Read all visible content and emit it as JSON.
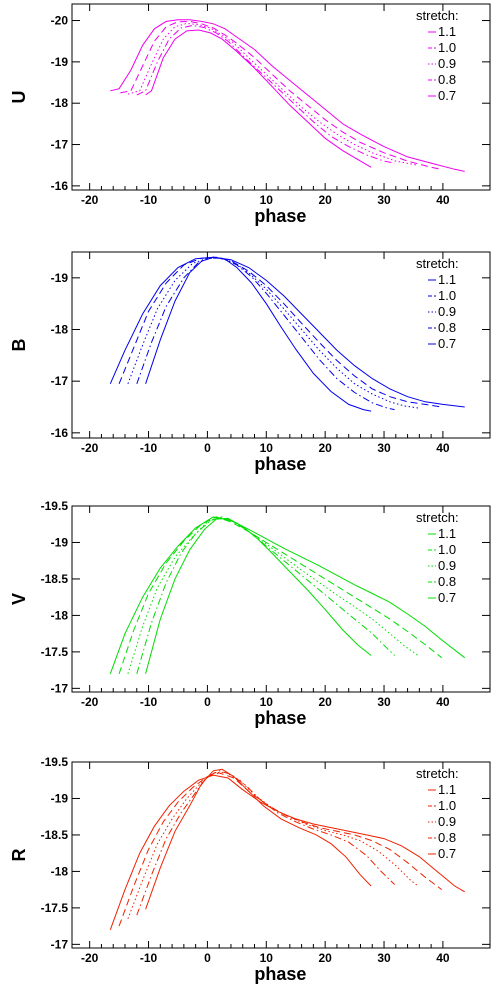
{
  "chart_data": [
    {
      "type": "line",
      "ylabel": "U",
      "xlabel": "phase",
      "xlim": [
        -23,
        48
      ],
      "ylim": [
        -15.9,
        -20.4
      ],
      "y_inverted": true,
      "x_ticks": [
        "-20",
        "-10",
        "0",
        "10",
        "20",
        "30",
        "40"
      ],
      "y_ticks": [
        "-20",
        "-19",
        "-18",
        "-17",
        "-16"
      ],
      "color": "#ee00ee",
      "legend_title": "stretch:",
      "series": [
        {
          "name": "1.1",
          "dash": "solid",
          "x": [
            -16.5,
            -15,
            -13,
            -11,
            -9,
            -7,
            -5,
            -3,
            -1,
            1,
            3,
            5,
            8,
            11,
            14,
            17,
            20,
            23,
            26,
            30,
            34,
            38,
            42,
            43.7
          ],
          "y": [
            -18.3,
            -18.35,
            -18.8,
            -19.4,
            -19.8,
            -19.98,
            -20.02,
            -20.02,
            -19.98,
            -19.92,
            -19.8,
            -19.6,
            -19.3,
            -18.9,
            -18.55,
            -18.2,
            -17.85,
            -17.5,
            -17.25,
            -16.95,
            -16.7,
            -16.55,
            -16.4,
            -16.35
          ]
        },
        {
          "name": "1.0",
          "dash": "dash",
          "x": [
            -14.8,
            -13,
            -11,
            -9,
            -7,
            -5,
            -3,
            -1,
            1,
            3,
            5,
            8,
            11,
            14,
            17,
            20,
            23,
            26,
            30,
            34,
            38,
            39.7
          ],
          "y": [
            -18.25,
            -18.3,
            -18.9,
            -19.5,
            -19.85,
            -19.97,
            -19.98,
            -19.92,
            -19.82,
            -19.65,
            -19.45,
            -19.1,
            -18.7,
            -18.3,
            -17.95,
            -17.6,
            -17.3,
            -17.05,
            -16.8,
            -16.6,
            -16.45,
            -16.4
          ]
        },
        {
          "name": "0.9",
          "dash": "dot",
          "x": [
            -13.5,
            -11.5,
            -9.5,
            -7.5,
            -5.5,
            -3.5,
            -1.5,
            0.5,
            2.5,
            4.5,
            7,
            10,
            13,
            16,
            19,
            22,
            25,
            28,
            32,
            35.7
          ],
          "y": [
            -18.22,
            -18.3,
            -18.95,
            -19.55,
            -19.85,
            -19.93,
            -19.9,
            -19.82,
            -19.65,
            -19.45,
            -19.1,
            -18.7,
            -18.3,
            -17.9,
            -17.55,
            -17.25,
            -17.0,
            -16.8,
            -16.6,
            -16.5
          ]
        },
        {
          "name": "0.8",
          "dash": "dashdot",
          "x": [
            -12,
            -10.5,
            -8.5,
            -6.5,
            -4.5,
            -2.5,
            -0.5,
            1.5,
            3.5,
            6,
            9,
            12,
            15,
            18,
            21,
            24,
            27,
            30,
            31.8
          ],
          "y": [
            -18.2,
            -18.3,
            -19.0,
            -19.55,
            -19.82,
            -19.88,
            -19.83,
            -19.7,
            -19.5,
            -19.15,
            -18.75,
            -18.35,
            -17.95,
            -17.55,
            -17.2,
            -16.95,
            -16.75,
            -16.6,
            -16.55
          ]
        },
        {
          "name": "0.7",
          "dash": "solid",
          "x": [
            -10.5,
            -9.5,
            -7.5,
            -5.5,
            -3.5,
            -1.5,
            0.5,
            2.5,
            5,
            8,
            11,
            14,
            17,
            20,
            23,
            26,
            27.8
          ],
          "y": [
            -18.2,
            -18.3,
            -19.1,
            -19.55,
            -19.75,
            -19.77,
            -19.7,
            -19.55,
            -19.25,
            -18.85,
            -18.4,
            -17.95,
            -17.55,
            -17.15,
            -16.85,
            -16.6,
            -16.45
          ]
        }
      ]
    },
    {
      "type": "line",
      "ylabel": "B",
      "xlabel": "phase",
      "xlim": [
        -23,
        48
      ],
      "ylim": [
        -15.9,
        -19.5
      ],
      "y_inverted": true,
      "x_ticks": [
        "-20",
        "-10",
        "0",
        "10",
        "20",
        "30",
        "40"
      ],
      "y_ticks": [
        "-19",
        "-18",
        "-17",
        "-16"
      ],
      "color": "#0000ee",
      "legend_title": "stretch:",
      "series": [
        {
          "name": "1.1",
          "dash": "solid",
          "x": [
            -16.5,
            -14,
            -11,
            -8,
            -5,
            -2,
            1,
            4,
            7,
            10,
            13,
            16,
            19,
            22,
            25,
            28,
            31,
            34,
            37,
            40,
            43.7
          ],
          "y": [
            -16.95,
            -17.6,
            -18.3,
            -18.85,
            -19.2,
            -19.37,
            -19.4,
            -19.35,
            -19.2,
            -18.95,
            -18.65,
            -18.3,
            -17.95,
            -17.6,
            -17.3,
            -17.05,
            -16.85,
            -16.7,
            -16.6,
            -16.55,
            -16.5
          ]
        },
        {
          "name": "1.0",
          "dash": "dash",
          "x": [
            -15,
            -12.5,
            -10,
            -7,
            -4,
            -1,
            1.5,
            4,
            7,
            10,
            13,
            16,
            19,
            22,
            25,
            28,
            31,
            34,
            37,
            39.8
          ],
          "y": [
            -16.95,
            -17.65,
            -18.35,
            -18.9,
            -19.25,
            -19.38,
            -19.4,
            -19.33,
            -19.13,
            -18.85,
            -18.5,
            -18.12,
            -17.75,
            -17.4,
            -17.1,
            -16.85,
            -16.7,
            -16.6,
            -16.55,
            -16.5
          ]
        },
        {
          "name": "0.9",
          "dash": "dot",
          "x": [
            -13.5,
            -11,
            -8.5,
            -5.5,
            -2.5,
            0,
            2,
            4.5,
            7,
            10,
            13,
            16,
            19,
            22,
            25,
            28,
            31,
            33.5,
            35.8
          ],
          "y": [
            -16.95,
            -17.7,
            -18.4,
            -18.95,
            -19.28,
            -19.38,
            -19.38,
            -19.3,
            -19.1,
            -18.78,
            -18.4,
            -18.0,
            -17.6,
            -17.25,
            -16.95,
            -16.75,
            -16.6,
            -16.52,
            -16.48
          ]
        },
        {
          "name": "0.8",
          "dash": "dashdot",
          "x": [
            -12,
            -9.5,
            -7,
            -4,
            -1.5,
            0.5,
            2.5,
            5,
            7.5,
            10,
            13,
            16,
            19,
            22,
            25,
            28,
            30.5,
            31.8
          ],
          "y": [
            -16.95,
            -17.75,
            -18.45,
            -19.0,
            -19.3,
            -19.38,
            -19.38,
            -19.25,
            -19.02,
            -18.7,
            -18.28,
            -17.85,
            -17.42,
            -17.05,
            -16.78,
            -16.58,
            -16.48,
            -16.45
          ]
        },
        {
          "name": "0.7",
          "dash": "solid",
          "x": [
            -10.5,
            -8,
            -5.5,
            -3,
            -1,
            1,
            3,
            5,
            7.5,
            10,
            12.5,
            15,
            18,
            21,
            24,
            26.5,
            27.8
          ],
          "y": [
            -16.95,
            -17.8,
            -18.55,
            -19.1,
            -19.32,
            -19.4,
            -19.36,
            -19.2,
            -18.9,
            -18.5,
            -18.05,
            -17.62,
            -17.15,
            -16.8,
            -16.55,
            -16.45,
            -16.42
          ]
        }
      ]
    },
    {
      "type": "line",
      "ylabel": "V",
      "xlabel": "phase",
      "xlim": [
        -23,
        48
      ],
      "ylim": [
        -16.95,
        -19.5
      ],
      "y_inverted": true,
      "x_ticks": [
        "-20",
        "-10",
        "0",
        "10",
        "20",
        "30",
        "40"
      ],
      "y_ticks": [
        "-19.5",
        "-19",
        "-18.5",
        "-18",
        "-17.5",
        "-17"
      ],
      "color": "#00dd00",
      "legend_title": "stretch:",
      "series": [
        {
          "name": "1.1",
          "dash": "solid",
          "x": [
            -16.5,
            -14,
            -11,
            -8,
            -5,
            -2,
            1,
            4,
            7,
            10,
            13,
            16,
            19,
            22,
            25,
            28,
            31,
            34,
            37,
            40,
            43.7
          ],
          "y": [
            -17.2,
            -17.75,
            -18.25,
            -18.65,
            -18.95,
            -19.2,
            -19.35,
            -19.3,
            -19.18,
            -19.05,
            -18.92,
            -18.8,
            -18.68,
            -18.55,
            -18.42,
            -18.3,
            -18.18,
            -18.02,
            -17.85,
            -17.65,
            -17.42
          ]
        },
        {
          "name": "1.0",
          "dash": "dash",
          "x": [
            -15,
            -12.5,
            -10,
            -7,
            -4,
            -1,
            1.5,
            4,
            7,
            10,
            13,
            16,
            19,
            22,
            25,
            28,
            31,
            34,
            37,
            39.8
          ],
          "y": [
            -17.2,
            -17.8,
            -18.3,
            -18.72,
            -19.02,
            -19.25,
            -19.35,
            -19.28,
            -19.15,
            -19.0,
            -18.85,
            -18.7,
            -18.55,
            -18.4,
            -18.25,
            -18.1,
            -17.95,
            -17.78,
            -17.6,
            -17.42
          ]
        },
        {
          "name": "0.9",
          "dash": "dot",
          "x": [
            -13.5,
            -11,
            -8.5,
            -5.5,
            -2.5,
            0,
            2,
            4.5,
            7,
            10,
            13,
            16,
            19,
            22,
            25,
            28,
            31,
            33.5,
            35.8
          ],
          "y": [
            -17.2,
            -17.85,
            -18.38,
            -18.8,
            -19.08,
            -19.28,
            -19.35,
            -19.28,
            -19.15,
            -18.98,
            -18.8,
            -18.62,
            -18.45,
            -18.28,
            -18.12,
            -17.95,
            -17.75,
            -17.58,
            -17.45
          ]
        },
        {
          "name": "0.8",
          "dash": "dashdot",
          "x": [
            -12,
            -9.5,
            -7,
            -4.5,
            -2,
            0.5,
            2.5,
            5,
            7.5,
            10,
            13,
            16,
            19,
            22,
            25,
            28,
            30.5,
            31.8
          ],
          "y": [
            -17.2,
            -17.9,
            -18.45,
            -18.85,
            -19.12,
            -19.3,
            -19.35,
            -19.26,
            -19.12,
            -18.95,
            -18.75,
            -18.55,
            -18.35,
            -18.15,
            -17.95,
            -17.75,
            -17.55,
            -17.45
          ]
        },
        {
          "name": "0.7",
          "dash": "solid",
          "x": [
            -10.5,
            -8,
            -5.5,
            -3,
            -0.5,
            1.5,
            3.5,
            6,
            8.5,
            11,
            14,
            17,
            20,
            23,
            25.5,
            27.8
          ],
          "y": [
            -17.2,
            -17.95,
            -18.5,
            -18.9,
            -19.18,
            -19.32,
            -19.33,
            -19.22,
            -19.05,
            -18.85,
            -18.6,
            -18.35,
            -18.08,
            -17.8,
            -17.6,
            -17.45
          ]
        }
      ]
    },
    {
      "type": "line",
      "ylabel": "R",
      "xlabel": "phase",
      "xlim": [
        -23,
        48
      ],
      "ylim": [
        -16.95,
        -19.5
      ],
      "y_inverted": true,
      "x_ticks": [
        "-20",
        "-10",
        "0",
        "10",
        "20",
        "30",
        "40"
      ],
      "y_ticks": [
        "-19.5",
        "-19",
        "-18.5",
        "-18",
        "-17.5",
        "-17"
      ],
      "color": "#ee2200",
      "legend_title": "stretch:",
      "series": [
        {
          "name": "1.1",
          "dash": "solid",
          "x": [
            -16.5,
            -14,
            -11.5,
            -9,
            -6.5,
            -4,
            -1.5,
            1,
            3.5,
            6,
            9,
            12,
            15,
            18,
            21,
            24,
            27,
            30,
            33,
            36,
            39,
            42,
            43.7
          ],
          "y": [
            -17.2,
            -17.75,
            -18.25,
            -18.62,
            -18.9,
            -19.1,
            -19.25,
            -19.32,
            -19.28,
            -19.12,
            -18.95,
            -18.82,
            -18.72,
            -18.65,
            -18.6,
            -18.55,
            -18.5,
            -18.45,
            -18.35,
            -18.2,
            -18.0,
            -17.8,
            -17.72
          ]
        },
        {
          "name": "1.0",
          "dash": "dash",
          "x": [
            -15,
            -12.5,
            -10,
            -7.5,
            -5,
            -2.5,
            0,
            2,
            4.5,
            7,
            10,
            13,
            16,
            19,
            22,
            25,
            28,
            31,
            34,
            37,
            39.8
          ],
          "y": [
            -17.25,
            -17.8,
            -18.3,
            -18.68,
            -18.95,
            -19.15,
            -19.3,
            -19.35,
            -19.28,
            -19.1,
            -18.92,
            -18.78,
            -18.68,
            -18.6,
            -18.55,
            -18.5,
            -18.42,
            -18.3,
            -18.12,
            -17.92,
            -17.75
          ]
        },
        {
          "name": "0.9",
          "dash": "dot",
          "x": [
            -13.5,
            -11,
            -8.5,
            -6,
            -3.5,
            -1,
            1,
            3,
            5.5,
            8,
            11,
            14,
            17,
            20,
            23,
            26,
            29,
            32,
            34.5,
            35.8
          ],
          "y": [
            -17.35,
            -17.88,
            -18.38,
            -18.72,
            -19.0,
            -19.22,
            -19.35,
            -19.36,
            -19.25,
            -19.05,
            -18.87,
            -18.74,
            -18.64,
            -18.56,
            -18.5,
            -18.42,
            -18.28,
            -18.08,
            -17.88,
            -17.8
          ]
        },
        {
          "name": "0.8",
          "dash": "dashdot",
          "x": [
            -12,
            -9.5,
            -7,
            -4.5,
            -2,
            0,
            2,
            4,
            6.5,
            9,
            12,
            15,
            18,
            21,
            24,
            27,
            29.5,
            31.8
          ],
          "y": [
            -17.4,
            -17.95,
            -18.45,
            -18.8,
            -19.08,
            -19.3,
            -19.38,
            -19.33,
            -19.18,
            -18.98,
            -18.8,
            -18.68,
            -18.58,
            -18.5,
            -18.4,
            -18.22,
            -18.0,
            -17.82
          ]
        },
        {
          "name": "0.7",
          "dash": "solid",
          "x": [
            -10.5,
            -8,
            -5.5,
            -3,
            -1,
            1,
            2.5,
            4.5,
            7,
            9.5,
            12.5,
            15.5,
            18.5,
            21,
            23.5,
            26,
            27.8
          ],
          "y": [
            -17.48,
            -18.05,
            -18.55,
            -18.9,
            -19.2,
            -19.38,
            -19.4,
            -19.3,
            -19.1,
            -18.9,
            -18.72,
            -18.6,
            -18.5,
            -18.38,
            -18.2,
            -17.95,
            -17.8
          ]
        }
      ]
    }
  ]
}
